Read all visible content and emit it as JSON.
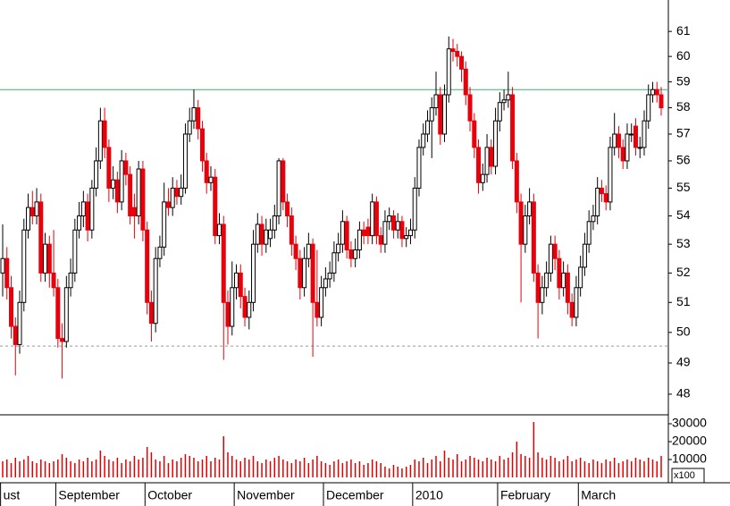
{
  "chart_data": {
    "type": "candlestick",
    "categories": [
      "ust",
      null,
      null,
      null,
      null,
      null,
      null,
      null,
      null,
      null,
      null,
      null,
      null,
      "September",
      null,
      null,
      null,
      null,
      null,
      null,
      null,
      null,
      null,
      null,
      null,
      null,
      null,
      null,
      null,
      null,
      null,
      null,
      null,
      null,
      "October",
      null,
      null,
      null,
      null,
      null,
      null,
      null,
      null,
      null,
      null,
      null,
      null,
      null,
      null,
      null,
      null,
      null,
      null,
      null,
      null,
      "November",
      null,
      null,
      null,
      null,
      null,
      null,
      null,
      null,
      null,
      null,
      null,
      null,
      null,
      null,
      null,
      null,
      null,
      null,
      null,
      null,
      "December",
      null,
      null,
      null,
      null,
      null,
      null,
      null,
      null,
      null,
      null,
      null,
      null,
      null,
      null,
      null,
      null,
      null,
      null,
      null,
      null,
      "2010",
      null,
      null,
      null,
      null,
      null,
      null,
      null,
      null,
      null,
      null,
      null,
      null,
      null,
      null,
      null,
      null,
      null,
      null,
      null,
      "February",
      null,
      null,
      null,
      null,
      null,
      null,
      null,
      null,
      null,
      null,
      null,
      null,
      null,
      null,
      null,
      null,
      null,
      null,
      "March",
      null,
      null,
      null,
      null,
      null,
      null,
      null,
      null,
      null,
      null,
      null,
      null,
      null,
      null,
      null,
      null,
      null,
      null,
      null
    ],
    "open": [
      52,
      52.5,
      51.5,
      50.2,
      49.6,
      51,
      53.5,
      54.3,
      54,
      54.5,
      52,
      53,
      52,
      51.5,
      49.8,
      49.7,
      51.5,
      52,
      53.5,
      54,
      54.5,
      53.5,
      55,
      56,
      57.5,
      56.5,
      55,
      55.3,
      54.5,
      56,
      55.5,
      54.3,
      54,
      55.7,
      53.5,
      51,
      50.3,
      52.5,
      52.9,
      54.5,
      54.3,
      55,
      54.7,
      55,
      57,
      57.5,
      58,
      57.2,
      56,
      55.2,
      55.4,
      53.3,
      53.7,
      51,
      50.2,
      51.5,
      52,
      51.2,
      50.5,
      51,
      53,
      53.7,
      53,
      53.2,
      53.5,
      54,
      56,
      54.5,
      54,
      53,
      52.5,
      51.5,
      52.5,
      53,
      51,
      50.5,
      51.5,
      51.8,
      52,
      52.7,
      53,
      53.8,
      52.8,
      52.5,
      52.8,
      53.5,
      53.6,
      53.3,
      54.5,
      53.3,
      53,
      53.8,
      54,
      53.5,
      53.8,
      53.2,
      53.3,
      53.5,
      55,
      56.5,
      57,
      57.5,
      58,
      58.5,
      57,
      58.5,
      60.3,
      60.2,
      60,
      59.5,
      58.5,
      57.5,
      56.5,
      55.2,
      55.5,
      56.5,
      55.8,
      57.5,
      58.2,
      58.3,
      58.5,
      56,
      54.5,
      53,
      54,
      54.5,
      52,
      51,
      51.5,
      52,
      53,
      52.5,
      51.5,
      52,
      51,
      50.5,
      51.5,
      52.2,
      53,
      53.8,
      54,
      55,
      54.8,
      54.5,
      56.5,
      57,
      56.5,
      56,
      57,
      57.3,
      56.5,
      56.5,
      57.5,
      58.5,
      58.7,
      58.5
    ],
    "high": [
      53.7,
      52.9,
      51.9,
      50.5,
      51.4,
      53.9,
      54.8,
      54.9,
      55,
      54.8,
      53.4,
      53.3,
      53.5,
      51.8,
      50.3,
      51.9,
      52.5,
      53.9,
      54.5,
      54.9,
      54.8,
      55.3,
      56.5,
      58,
      58,
      56.8,
      55.8,
      55.6,
      56.4,
      56.3,
      55.8,
      54.8,
      56,
      56,
      53.8,
      51.4,
      52.9,
      53.3,
      55.2,
      55,
      55.4,
      55.3,
      55.5,
      57.4,
      58,
      58.7,
      58.3,
      57.5,
      56.3,
      55.8,
      55.7,
      54.1,
      54,
      51.4,
      52.4,
      52.3,
      52.3,
      51.5,
      51.4,
      53.5,
      54.1,
      54,
      53.9,
      53.9,
      54.4,
      56.1,
      56.1,
      54.8,
      54.3,
      53.3,
      52.8,
      52.9,
      53.4,
      53.2,
      52.8,
      51.9,
      52.2,
      52.4,
      53.1,
      53.4,
      54.2,
      54,
      53.1,
      53.2,
      53.8,
      53.8,
      53.9,
      54.8,
      54.7,
      53.6,
      54.2,
      54.3,
      54.2,
      54.1,
      54,
      53.6,
      53.9,
      55.4,
      56.8,
      57.4,
      57.9,
      58.4,
      59.4,
      58.8,
      58.9,
      60.8,
      60.7,
      60.5,
      60.2,
      59.8,
      58.8,
      57.8,
      56.8,
      55.9,
      57,
      56.8,
      58,
      58.6,
      58.7,
      59.4,
      58.8,
      56.3,
      54.8,
      54.4,
      55,
      54.8,
      52.3,
      51.9,
      52.4,
      53.3,
      53.3,
      52.8,
      52.4,
      52.3,
      51.3,
      51.9,
      52.6,
      53.4,
      54.2,
      54.4,
      55.4,
      55.3,
      55.1,
      56.9,
      57.8,
      57.3,
      56.8,
      57.4,
      57.4,
      57.6,
      56.9,
      57.9,
      58.9,
      59,
      59,
      58.8
    ],
    "low": [
      51.2,
      51.1,
      49.8,
      48.6,
      49.3,
      50.7,
      53.2,
      53.7,
      53.7,
      51.7,
      51.7,
      51.5,
      51.2,
      49.5,
      48.5,
      49.5,
      51.2,
      51.7,
      53.2,
      53.6,
      53.1,
      53.2,
      54.7,
      55.7,
      56.1,
      54.5,
      54.6,
      54.1,
      54.2,
      55.1,
      53.7,
      53.2,
      53.7,
      53.1,
      50.6,
      49.7,
      50,
      52.2,
      52.6,
      54,
      54,
      54.4,
      54.4,
      54.8,
      56.7,
      57.2,
      56.8,
      55.6,
      54.8,
      54.9,
      53,
      53,
      49.1,
      49.6,
      49.9,
      51.1,
      50.8,
      50.2,
      50.1,
      50.7,
      52.7,
      52.6,
      52.7,
      52.9,
      53.2,
      53.7,
      54.2,
      53.6,
      52.6,
      52.1,
      51.1,
      51.2,
      52.2,
      49.2,
      50.2,
      50.2,
      51.2,
      51.5,
      51.7,
      52.4,
      52.7,
      52.5,
      52.2,
      52.2,
      52.5,
      53,
      53,
      53,
      53,
      52.7,
      52.7,
      53.5,
      53.2,
      53.2,
      52.9,
      52.9,
      53,
      53.2,
      54.7,
      56.2,
      56.7,
      56.1,
      57.7,
      56.6,
      56.7,
      58.2,
      59.8,
      59.6,
      59,
      58.1,
      57.1,
      56.1,
      54.8,
      54.9,
      55.2,
      55.5,
      55.5,
      57.1,
      57.9,
      58,
      55.7,
      54.1,
      51,
      52.7,
      53.7,
      51.7,
      49.8,
      50.6,
      51.2,
      51.7,
      52.1,
      51.1,
      51.2,
      50.6,
      50.2,
      50.2,
      51.2,
      51.9,
      52.7,
      53.5,
      53.7,
      54.5,
      54.2,
      54.2,
      56.2,
      56.1,
      55.7,
      55.7,
      56.7,
      56.2,
      56.1,
      56.2,
      57.2,
      58.2,
      58.2,
      57.7
    ],
    "close": [
      52.5,
      51.5,
      50.2,
      49.6,
      51,
      53.5,
      54.3,
      54,
      54.5,
      52,
      53,
      52,
      51.5,
      49.8,
      49.7,
      51.5,
      52,
      53.5,
      54,
      54.5,
      53.5,
      55,
      56,
      57.5,
      56.5,
      55,
      55.3,
      54.5,
      56,
      55.5,
      54,
      54,
      55.7,
      53.5,
      51,
      50.3,
      52.5,
      52.9,
      54.5,
      54.3,
      55,
      54.7,
      55,
      57,
      57.5,
      58,
      57.2,
      56,
      55.2,
      55.4,
      53.3,
      53.7,
      51,
      50.2,
      51.5,
      52,
      51.2,
      50.5,
      51,
      53,
      53.7,
      53,
      53.5,
      53.5,
      54,
      56,
      54.5,
      54,
      53,
      52.5,
      51.5,
      52.5,
      53,
      51,
      50.5,
      51.5,
      51.8,
      52,
      52.7,
      53,
      53.8,
      52.8,
      52.5,
      52.8,
      53.5,
      53.3,
      53.3,
      54.5,
      53.3,
      53,
      53.8,
      54,
      53.5,
      53.8,
      53.2,
      53.3,
      53.5,
      55,
      56.5,
      57,
      57.5,
      58,
      58.5,
      57,
      58.5,
      60.3,
      60.2,
      60,
      59.5,
      58.5,
      57.5,
      56.5,
      55.2,
      55.5,
      56.5,
      55.8,
      57.5,
      58.2,
      58.3,
      58.5,
      56,
      54.5,
      53,
      54,
      54.5,
      52,
      51,
      51.5,
      52,
      53,
      52.5,
      51.5,
      52,
      51,
      50.5,
      51.5,
      52.2,
      53,
      53.8,
      54,
      55,
      54.8,
      54.5,
      56.5,
      57,
      56.5,
      56,
      57,
      57,
      56.5,
      56.5,
      57.5,
      58.5,
      58.7,
      58.5,
      58
    ],
    "volume": [
      9000,
      10000,
      8000,
      11000,
      9000,
      10000,
      12000,
      9000,
      8000,
      10000,
      9000,
      8000,
      9000,
      10000,
      13000,
      11000,
      9000,
      8000,
      10000,
      9000,
      11000,
      9000,
      10000,
      15000,
      12000,
      10000,
      9000,
      11000,
      8000,
      10000,
      9000,
      12000,
      10000,
      11000,
      17000,
      14000,
      10000,
      9000,
      12000,
      8000,
      10000,
      9000,
      11000,
      13000,
      12000,
      11000,
      9000,
      10000,
      12000,
      9000,
      11000,
      10000,
      23000,
      14000,
      12000,
      10000,
      9000,
      11000,
      10000,
      12000,
      9000,
      8000,
      10000,
      9000,
      11000,
      12000,
      10000,
      9000,
      8000,
      10000,
      9000,
      11000,
      8000,
      10000,
      12000,
      9000,
      8000,
      7000,
      9000,
      10000,
      8000,
      9000,
      10000,
      8000,
      9000,
      7000,
      8000,
      10000,
      9000,
      8000,
      6000,
      5000,
      7000,
      6000,
      5000,
      6000,
      7000,
      10000,
      9000,
      11000,
      8000,
      10000,
      12000,
      9000,
      15000,
      11000,
      10000,
      13000,
      9000,
      10000,
      12000,
      11000,
      10000,
      9000,
      11000,
      10000,
      9000,
      12000,
      10000,
      11000,
      14000,
      20000,
      13000,
      12000,
      11000,
      31000,
      14000,
      11000,
      10000,
      12000,
      11000,
      9000,
      10000,
      12000,
      9000,
      10000,
      11000,
      9000,
      8000,
      10000,
      9000,
      8000,
      10000,
      9000,
      11000,
      8000,
      9000,
      10000,
      9000,
      11000,
      10000,
      9000,
      11000,
      10000,
      9000,
      12000
    ],
    "up_color": "#ffffff",
    "down_color": "#e8000b",
    "volume_color": "#e00000",
    "ylim": [
      47.35,
      62.28
    ],
    "log_scale": true,
    "yticks": [
      48,
      49,
      50,
      51,
      52,
      53,
      54,
      55,
      56,
      57,
      58,
      59,
      60,
      61
    ],
    "volume_ylim": [
      0,
      35000
    ],
    "volume_yticks": [
      10000,
      20000,
      30000
    ],
    "volume_unit": "x100",
    "hlines": [
      {
        "value": 58.7,
        "color": "#3cb371",
        "style": "solid"
      },
      {
        "value": 49.55,
        "color": "#999999",
        "style": "dashed"
      }
    ]
  }
}
